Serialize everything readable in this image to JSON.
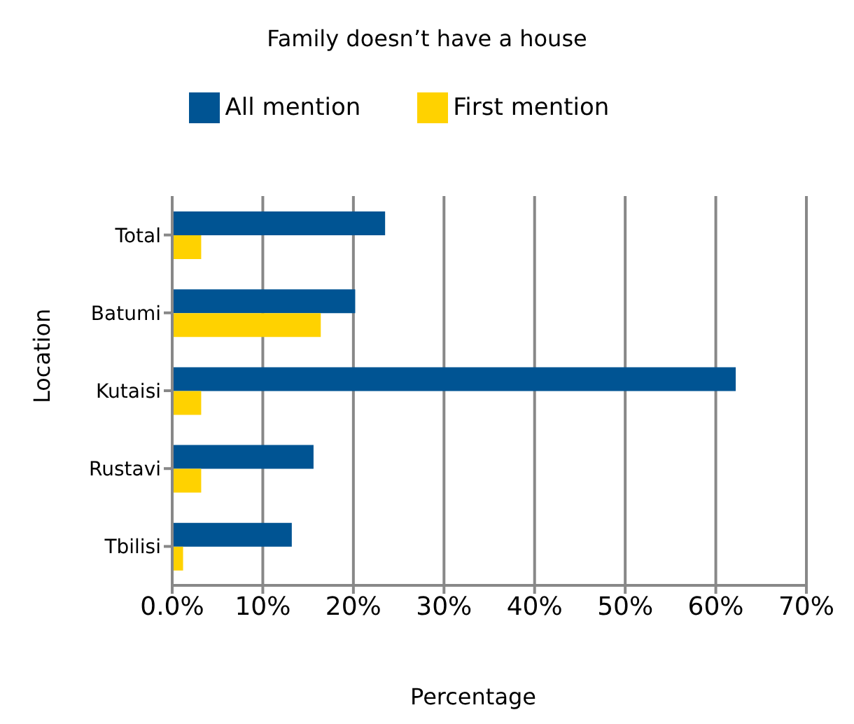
{
  "chart_data": {
    "type": "bar",
    "orientation": "horizontal",
    "title": "Family doesn’t have a house",
    "xlabel": "Percentage",
    "ylabel": "Location",
    "categories": [
      "Total",
      "Batumi",
      "Kutaisi",
      "Rustavi",
      "Tbilisi"
    ],
    "series": [
      {
        "name": "All mention",
        "color": "#005493",
        "values": [
          23.5,
          20.2,
          62.2,
          15.6,
          13.2
        ]
      },
      {
        "name": "First mention",
        "color": "#ffd200",
        "values": [
          3.2,
          16.4,
          3.2,
          3.2,
          1.2
        ]
      }
    ],
    "xlim": [
      0,
      70
    ],
    "xticks": [
      {
        "value": 0,
        "label": "0.0%"
      },
      {
        "value": 10,
        "label": "10%"
      },
      {
        "value": 20,
        "label": "20%"
      },
      {
        "value": 30,
        "label": "30%"
      },
      {
        "value": 40,
        "label": "40%"
      },
      {
        "value": 50,
        "label": "50%"
      },
      {
        "value": 60,
        "label": "60%"
      },
      {
        "value": 70,
        "label": "70%"
      }
    ],
    "grid": "x",
    "legend": "top"
  }
}
